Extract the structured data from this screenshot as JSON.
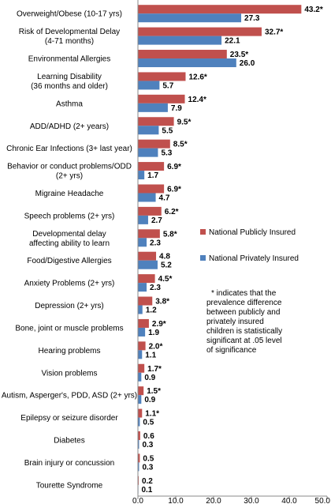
{
  "chart_data": {
    "type": "bar",
    "orientation": "horizontal",
    "categories": [
      [
        "Overweight/Obese (10-17 yrs)"
      ],
      [
        "Risk of Developmental Delay",
        "(4-71 months)"
      ],
      [
        "Environmental Allergies"
      ],
      [
        "Learning Disability",
        "(36 months and older)"
      ],
      [
        "Asthma"
      ],
      [
        "ADD/ADHD (2+ years)"
      ],
      [
        "Chronic Ear Infections (3+ last year)"
      ],
      [
        "Behavior or conduct problems/ODD",
        "(2+ yrs)"
      ],
      [
        "Migraine Headache"
      ],
      [
        "Speech problems (2+ yrs)"
      ],
      [
        "Developmental delay",
        "affecting ability to learn"
      ],
      [
        "Food/Digestive Allergies"
      ],
      [
        "Anxiety Problems (2+ yrs)"
      ],
      [
        "Depression (2+ yrs)"
      ],
      [
        "Bone, joint or muscle problems"
      ],
      [
        "Hearing problems"
      ],
      [
        "Vision problems"
      ],
      [
        "Autism, Asperger's, PDD, ASD (2+ yrs)"
      ],
      [
        "Epilepsy or seizure disorder"
      ],
      [
        "Diabetes"
      ],
      [
        "Brain injury or concussion"
      ],
      [
        "Tourette Syndrome"
      ]
    ],
    "series": [
      {
        "name": "National Publicly Insured",
        "color": "#c0504d",
        "values": [
          43.2,
          32.7,
          23.5,
          12.6,
          12.4,
          9.5,
          8.5,
          6.9,
          6.9,
          6.2,
          5.8,
          4.8,
          4.5,
          3.8,
          2.9,
          2.0,
          1.7,
          1.5,
          1.1,
          0.6,
          0.5,
          0.2
        ],
        "labels": [
          "43.2*",
          "32.7*",
          "23.5*",
          "12.6*",
          "12.4*",
          "9.5*",
          "8.5*",
          "6.9*",
          "6.9*",
          "6.2*",
          "5.8*",
          "4.8",
          "4.5*",
          "3.8*",
          "2.9*",
          "2.0*",
          "1.7*",
          "1.5*",
          "1.1*",
          "0.6",
          "0.5",
          "0.2"
        ]
      },
      {
        "name": "National Privately Insured",
        "color": "#4f81bd",
        "values": [
          27.3,
          22.1,
          26.0,
          5.7,
          7.9,
          5.5,
          5.3,
          1.7,
          4.7,
          2.7,
          2.3,
          5.2,
          2.3,
          1.2,
          1.9,
          1.1,
          0.9,
          0.9,
          0.5,
          0.3,
          0.3,
          0.1
        ],
        "labels": [
          "27.3",
          "22.1",
          "26.0",
          "5.7",
          "7.9",
          "5.5",
          "5.3",
          "1.7",
          "4.7",
          "2.7",
          "2.3",
          "5.2",
          "2.3",
          "1.2",
          "1.9",
          "1.1",
          "0.9",
          "0.9",
          "0.5",
          "0.3",
          "0.3",
          "0.1"
        ]
      }
    ],
    "xlim": [
      0,
      50
    ],
    "xticks": [
      "0.0",
      "10.0",
      "20.0",
      "30.0",
      "40.0",
      "50.0"
    ],
    "grid": false,
    "legend_position": "right"
  },
  "note": [
    "* indicates that the",
    "prevalence difference",
    "between publicly and",
    "privately insured",
    "children is statistically",
    "significant at .05 level",
    "of significance"
  ]
}
